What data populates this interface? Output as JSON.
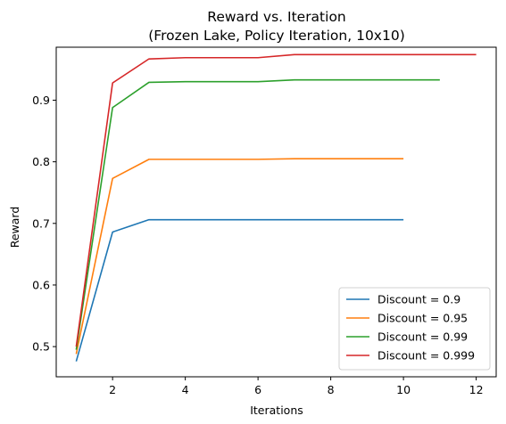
{
  "chart_data": {
    "type": "line",
    "title_line1": "Reward vs. Iteration",
    "title_line2": "(Frozen Lake, Policy Iteration, 10x10)",
    "xlabel": "Iterations",
    "ylabel": "Reward",
    "xlim": [
      0.45,
      12.55
    ],
    "ylim": [
      0.451,
      0.986
    ],
    "xticks": [
      2,
      4,
      6,
      8,
      10,
      12
    ],
    "yticks": [
      0.5,
      0.6,
      0.7,
      0.8,
      0.9
    ],
    "grid": false,
    "legend_position": "lower-right",
    "series": [
      {
        "name": "Discount = 0.9",
        "color": "#1f77b4",
        "x": [
          1,
          2,
          3,
          4,
          5,
          6,
          7,
          8,
          9,
          10
        ],
        "y": [
          0.476,
          0.686,
          0.706,
          0.706,
          0.706,
          0.706,
          0.706,
          0.706,
          0.706,
          0.706
        ]
      },
      {
        "name": "Discount = 0.95",
        "color": "#ff7f0e",
        "x": [
          1,
          2,
          3,
          4,
          5,
          6,
          7,
          8,
          9,
          10
        ],
        "y": [
          0.488,
          0.773,
          0.804,
          0.804,
          0.804,
          0.804,
          0.805,
          0.805,
          0.805,
          0.805
        ]
      },
      {
        "name": "Discount = 0.99",
        "color": "#2ca02c",
        "x": [
          1,
          2,
          3,
          4,
          5,
          6,
          7,
          8,
          9,
          10,
          11
        ],
        "y": [
          0.495,
          0.888,
          0.929,
          0.93,
          0.93,
          0.93,
          0.933,
          0.933,
          0.933,
          0.933,
          0.933
        ]
      },
      {
        "name": "Discount = 0.999",
        "color": "#d62728",
        "x": [
          1,
          2,
          3,
          4,
          5,
          6,
          7,
          8,
          9,
          10,
          11,
          12
        ],
        "y": [
          0.5,
          0.928,
          0.967,
          0.969,
          0.969,
          0.969,
          0.974,
          0.974,
          0.974,
          0.974,
          0.974,
          0.974
        ]
      }
    ]
  }
}
